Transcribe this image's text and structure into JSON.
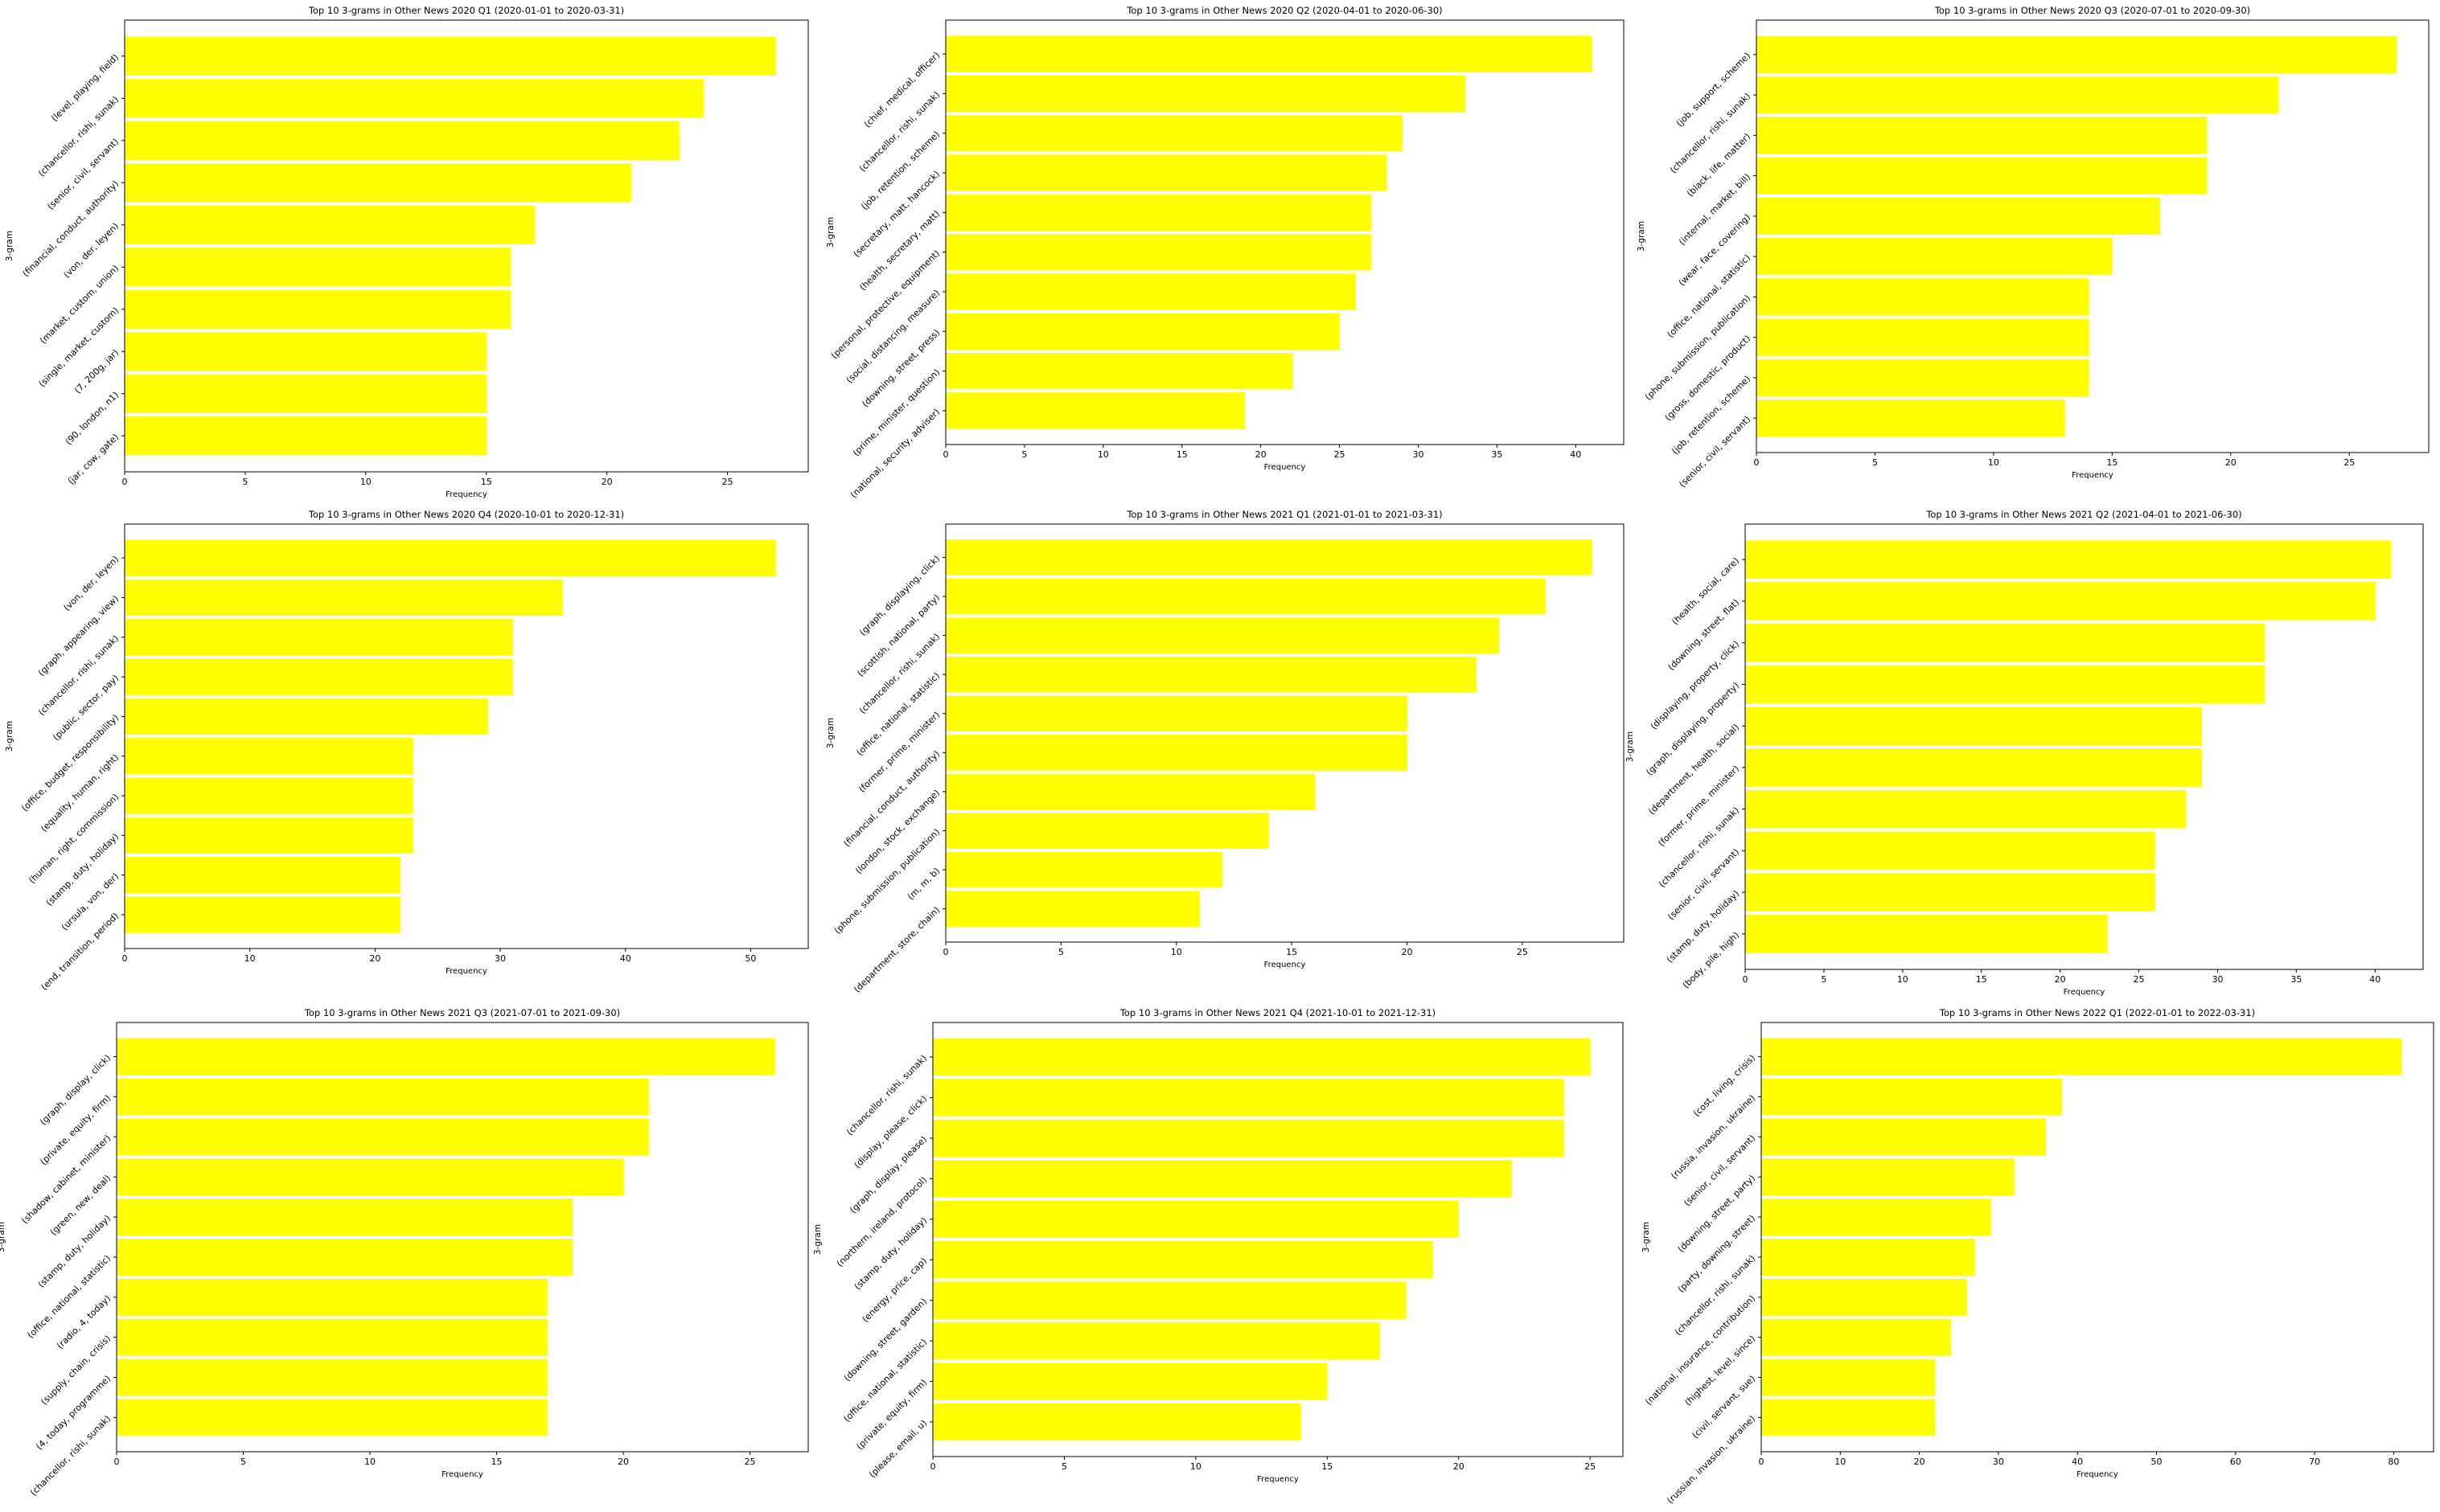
{
  "colors": {
    "bar": "#ffff00",
    "axis": "#000000",
    "background": "#ffffff"
  },
  "chart_data": [
    {
      "type": "bar",
      "orientation": "horizontal",
      "title": "Top 10 3-grams in Other News 2020 Q1 (2020-01-01 to 2020-03-31)",
      "xlabel": "Frequency",
      "ylabel": "3-gram",
      "xlim": [
        0,
        28.35
      ],
      "xticks": [
        0,
        5,
        10,
        15,
        20,
        25
      ],
      "categories": [
        "(level, playing, field)",
        "(chancellor, rishi, sunak)",
        "(senior, civil, servant)",
        "(financial, conduct, authority)",
        "(von, der, leyen)",
        "(market, custom, union)",
        "(single, market, custom)",
        "(7, 200g, jar)",
        "(90, london, n1)",
        "(jar, cow, gate)"
      ],
      "values": [
        27,
        24,
        23,
        21,
        17,
        16,
        16,
        15,
        15,
        15
      ]
    },
    {
      "type": "bar",
      "orientation": "horizontal",
      "title": "Top 10 3-grams in Other News 2020 Q2 (2020-04-01 to 2020-06-30)",
      "xlabel": "Frequency",
      "ylabel": "3-gram",
      "xlim": [
        0,
        43.05
      ],
      "xticks": [
        0,
        5,
        10,
        15,
        20,
        25,
        30,
        35,
        40
      ],
      "categories": [
        "(chief, medical, officer)",
        "(chancellor, rishi, sunak)",
        "(job, retention, scheme)",
        "(secretary, matt, hancock)",
        "(health, secretary, matt)",
        "(personal, protective, equipment)",
        "(social, distancing, measure)",
        "(downing, street, press)",
        "(prime, minister, question)",
        "(national, security, adviser)"
      ],
      "values": [
        41,
        33,
        29,
        28,
        27,
        27,
        26,
        25,
        22,
        19
      ]
    },
    {
      "type": "bar",
      "orientation": "horizontal",
      "title": "Top 10 3-grams in Other News 2020 Q3 (2020-07-01 to 2020-09-30)",
      "xlabel": "Frequency",
      "ylabel": "3-gram",
      "xlim": [
        0,
        28.35
      ],
      "xticks": [
        0,
        5,
        10,
        15,
        20,
        25
      ],
      "categories": [
        "(job, support, scheme)",
        "(chancellor, rishi, sunak)",
        "(black, life, matter)",
        "(internal, market, bill)",
        "(wear, face, covering)",
        "(office, national, statistic)",
        "(phone, submission, publication)",
        "(gross, domestic, product)",
        "(job, retention, scheme)",
        "(senior, civil, servant)"
      ],
      "values": [
        27,
        22,
        19,
        19,
        17,
        15,
        14,
        14,
        14,
        13
      ]
    },
    {
      "type": "bar",
      "orientation": "horizontal",
      "title": "Top 10 3-grams in Other News 2020 Q4 (2020-10-01 to 2020-12-31)",
      "xlabel": "Frequency",
      "ylabel": "3-gram",
      "xlim": [
        0,
        54.6
      ],
      "xticks": [
        0,
        10,
        20,
        30,
        40,
        50
      ],
      "categories": [
        "(von, der, leyen)",
        "(graph, appearing, view)",
        "(chancellor, rishi, sunak)",
        "(public, sector, pay)",
        "(office, budget, responsibility)",
        "(equality, human, right)",
        "(human, right, commission)",
        "(stamp, duty, holiday)",
        "(ursula, von, der)",
        "(end, transition, period)"
      ],
      "values": [
        52,
        35,
        31,
        31,
        29,
        23,
        23,
        23,
        22,
        22
      ]
    },
    {
      "type": "bar",
      "orientation": "horizontal",
      "title": "Top 10 3-grams in Other News 2021 Q1 (2021-01-01 to 2021-03-31)",
      "xlabel": "Frequency",
      "ylabel": "3-gram",
      "xlim": [
        0,
        29.4
      ],
      "xticks": [
        0,
        5,
        10,
        15,
        20,
        25
      ],
      "categories": [
        "(graph, displaying, click)",
        "(scottish, national, party)",
        "(chancellor, rishi, sunak)",
        "(office, national, statistic)",
        "(former, prime, minister)",
        "(financial, conduct, authority)",
        "(london, stock, exchange)",
        "(phone, submission, publication)",
        "(m, m, b)",
        "(department, store, chain)"
      ],
      "values": [
        28,
        26,
        24,
        23,
        20,
        20,
        16,
        14,
        12,
        11
      ]
    },
    {
      "type": "bar",
      "orientation": "horizontal",
      "title": "Top 10 3-grams in Other News 2021 Q2 (2021-04-01 to 2021-06-30)",
      "xlabel": "Frequency",
      "ylabel": "3-gram",
      "xlim": [
        0,
        43.05
      ],
      "xticks": [
        0,
        5,
        10,
        15,
        20,
        25,
        30,
        35,
        40
      ],
      "categories": [
        "(health, social, care)",
        "(downing, street, flat)",
        "(displaying, property, click)",
        "(graph, displaying, property)",
        "(department, health, social)",
        "(former, prime, minister)",
        "(chancellor, rishi, sunak)",
        "(senior, civil, servant)",
        "(stamp, duty, holiday)",
        "(body, pile, high)"
      ],
      "values": [
        41,
        40,
        33,
        33,
        29,
        29,
        28,
        26,
        26,
        23
      ]
    },
    {
      "type": "bar",
      "orientation": "horizontal",
      "title": "Top 10 3-grams in Other News 2021 Q3 (2021-07-01 to 2021-09-30)",
      "xlabel": "Frequency",
      "ylabel": "3-gram",
      "xlim": [
        0,
        27.3
      ],
      "xticks": [
        0,
        5,
        10,
        15,
        20,
        25
      ],
      "categories": [
        "(graph, display, click)",
        "(private, equity, firm)",
        "(shadow, cabinet, minister)",
        "(green, new, deal)",
        "(stamp, duty, holiday)",
        "(office, national, statistic)",
        "(radio, 4, today)",
        "(supply, chain, crisis)",
        "(4, today, programme)",
        "(chancellor, rishi, sunak)"
      ],
      "values": [
        26,
        21,
        21,
        20,
        18,
        18,
        17,
        17,
        17,
        17
      ]
    },
    {
      "type": "bar",
      "orientation": "horizontal",
      "title": "Top 10 3-grams in Other News 2021 Q4 (2021-10-01 to 2021-12-31)",
      "xlabel": "Frequency",
      "ylabel": "3-gram",
      "xlim": [
        0,
        26.25
      ],
      "xticks": [
        0,
        5,
        10,
        15,
        20,
        25
      ],
      "categories": [
        "(chancellor, rishi, sunak)",
        "(display, please, click)",
        "(graph, display, please)",
        "(northern, ireland, protocol)",
        "(stamp, duty, holiday)",
        "(energy, price, cap)",
        "(downing, street, garden)",
        "(office, national, statistic)",
        "(private, equity, firm)",
        "(please, email, u)"
      ],
      "values": [
        25,
        24,
        24,
        22,
        20,
        19,
        18,
        17,
        15,
        14
      ]
    },
    {
      "type": "bar",
      "orientation": "horizontal",
      "title": "Top 10 3-grams in Other News 2022 Q1 (2022-01-01 to 2022-03-31)",
      "xlabel": "Frequency",
      "ylabel": "3-gram",
      "xlim": [
        0,
        85.05
      ],
      "xticks": [
        0,
        10,
        20,
        30,
        40,
        50,
        60,
        70,
        80
      ],
      "categories": [
        "(cost, living, crisis)",
        "(russia, invasion, ukraine)",
        "(senior, civil, servant)",
        "(downing, street, party)",
        "(party, downing, street)",
        "(chancellor, rishi, sunak)",
        "(national, insurance, contribution)",
        "(highest, level, since)",
        "(civil, servant, sue)",
        "(russian, invasion, ukraine)"
      ],
      "values": [
        81,
        38,
        36,
        32,
        29,
        27,
        26,
        24,
        22,
        22
      ]
    }
  ]
}
